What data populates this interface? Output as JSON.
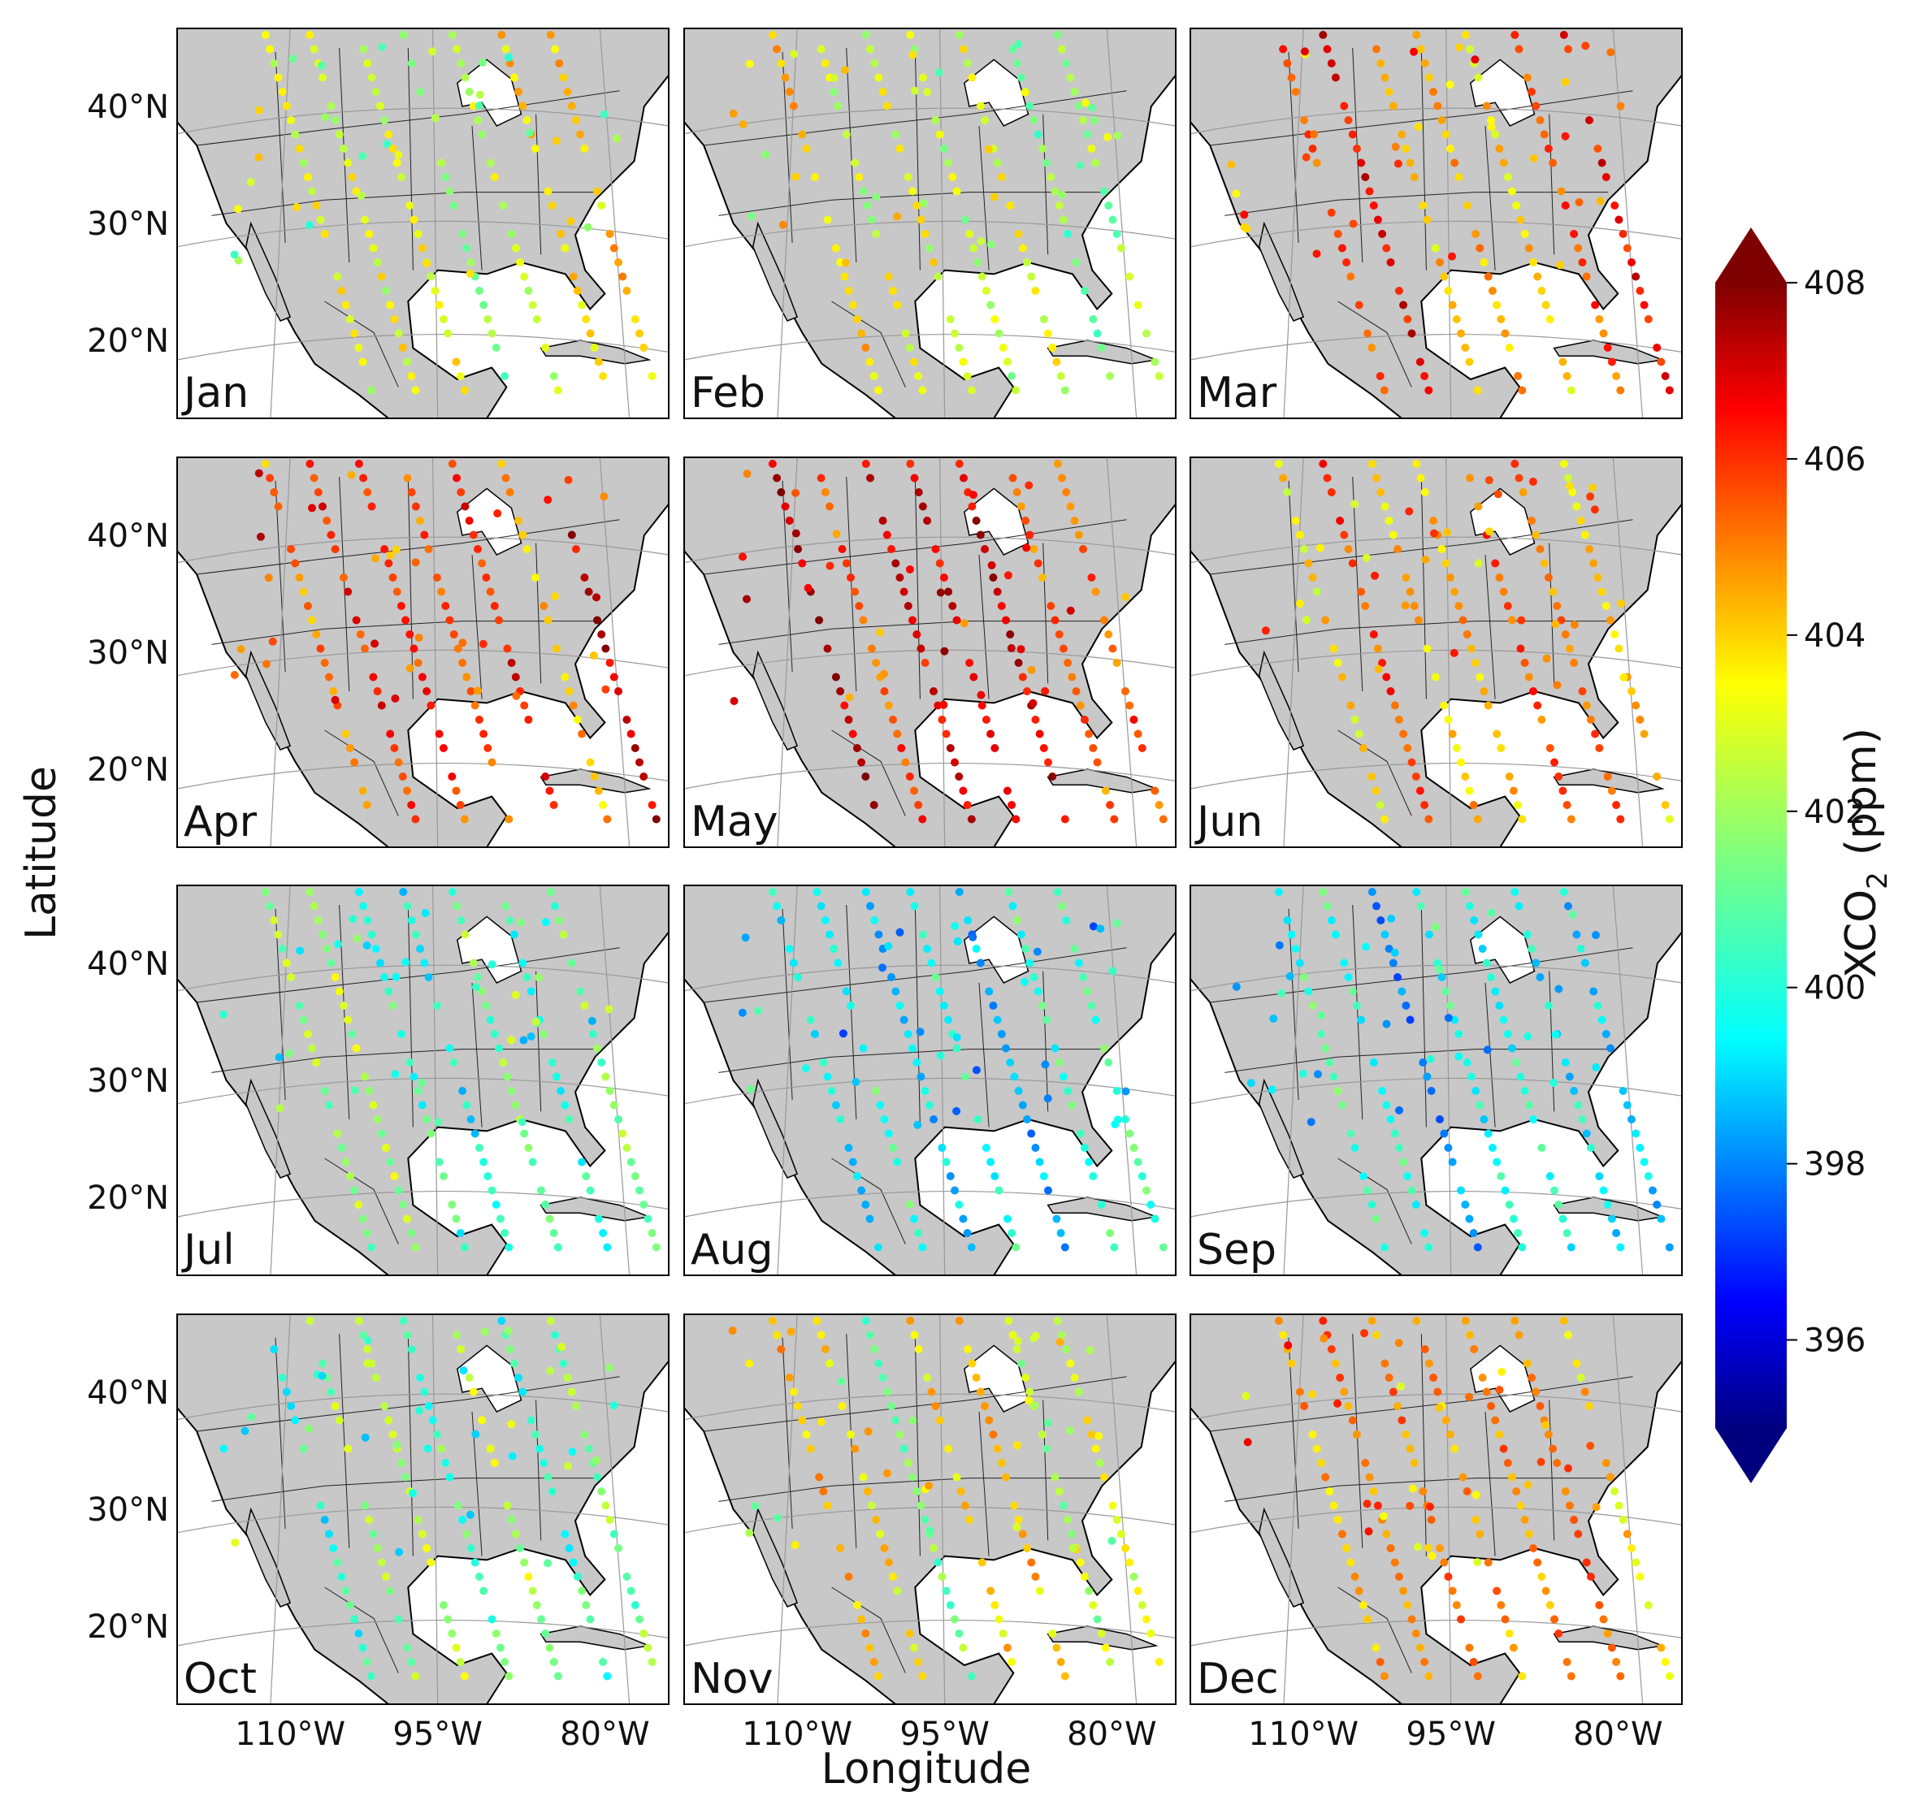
{
  "figure": {
    "ylabel": "Latitude",
    "xlabel": "Longitude",
    "lat_ticks": [
      "40°N",
      "30°N",
      "20°N"
    ],
    "lon_ticks": [
      "110°W",
      "95°W",
      "80°W"
    ],
    "colorbar": {
      "label_main": "XCO",
      "label_sub": "2",
      "label_unit": "(ppm)",
      "min": 395,
      "max": 408,
      "ticks": [
        "408",
        "406",
        "404",
        "402",
        "400",
        "398",
        "396"
      ],
      "tick_values": [
        408,
        406,
        404,
        402,
        400,
        398,
        396
      ],
      "colormap": [
        "#00007f",
        "#0000ff",
        "#007fff",
        "#00ffff",
        "#7fff7f",
        "#ffff00",
        "#ff7f00",
        "#ff0000",
        "#7f0000"
      ],
      "extend": "both"
    },
    "panels": [
      {
        "month": "Jan",
        "mean_xco2": 402.3
      },
      {
        "month": "Feb",
        "mean_xco2": 402.8
      },
      {
        "month": "Mar",
        "mean_xco2": 405.0
      },
      {
        "month": "Apr",
        "mean_xco2": 405.6
      },
      {
        "month": "May",
        "mean_xco2": 405.8
      },
      {
        "month": "Jun",
        "mean_xco2": 404.2
      },
      {
        "month": "Jul",
        "mean_xco2": 400.8
      },
      {
        "month": "Aug",
        "mean_xco2": 399.3
      },
      {
        "month": "Sep",
        "mean_xco2": 399.6
      },
      {
        "month": "Oct",
        "mean_xco2": 401.0
      },
      {
        "month": "Nov",
        "mean_xco2": 402.8
      },
      {
        "month": "Dec",
        "mean_xco2": 404.6
      }
    ],
    "colors": {
      "land": "#c8c8c8",
      "ocean": "#ffffff",
      "lakes": "#ffffff",
      "border": "#000000",
      "grid": "#999999"
    }
  }
}
